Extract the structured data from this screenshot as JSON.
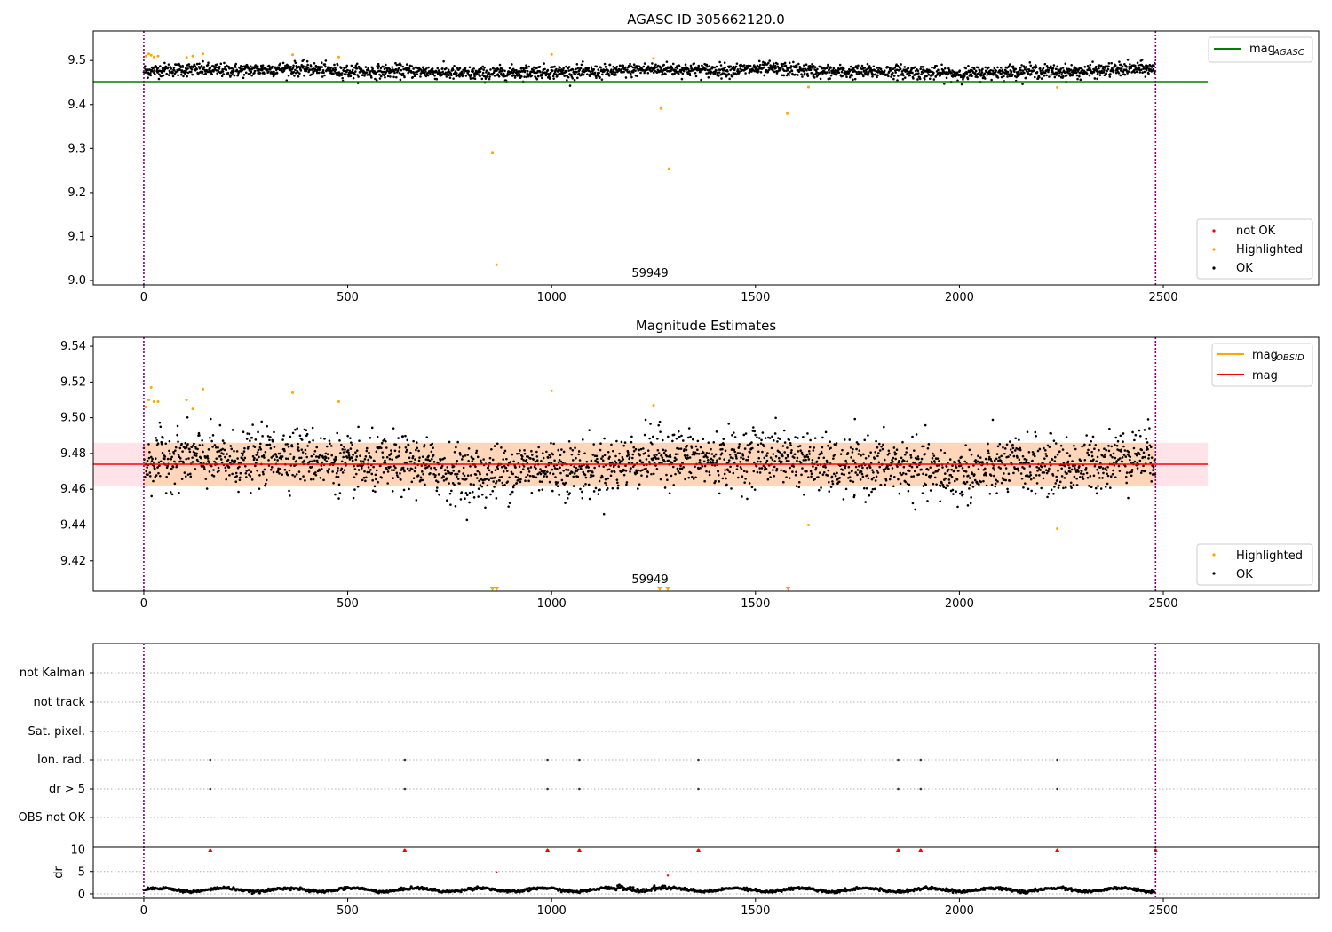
{
  "chart_data": [
    {
      "type": "scatter",
      "title": "AGASC ID 305662120.0",
      "xlim": [
        -124,
        2881
      ],
      "ylim": [
        8.99,
        9.567
      ],
      "xticks": [
        0,
        500,
        1000,
        1500,
        2000,
        2500
      ],
      "yticks": [
        9.0,
        9.1,
        9.2,
        9.3,
        9.4,
        9.5
      ],
      "annotation": "59949",
      "annotation_x": 1240,
      "annotation_y": 9.005,
      "vlines": [
        0,
        2481
      ],
      "hline": {
        "name": "mag_AGASC",
        "label": "mag",
        "sub": "AGASC",
        "y": 9.452,
        "x_end": 2609,
        "color": "#008000"
      },
      "ok": {
        "n": 2480,
        "x_range": [
          0,
          2481
        ],
        "mean": 9.476,
        "scatter": 0.011
      },
      "highlighted": [
        [
          5,
          9.51
        ],
        [
          12,
          9.515
        ],
        [
          18,
          9.512
        ],
        [
          25,
          9.508
        ],
        [
          35,
          9.51
        ],
        [
          105,
          9.507
        ],
        [
          120,
          9.51
        ],
        [
          145,
          9.515
        ],
        [
          365,
          9.513
        ],
        [
          478,
          9.508
        ],
        [
          1000,
          9.514
        ],
        [
          1250,
          9.505
        ],
        [
          855,
          9.291
        ],
        [
          865,
          9.036
        ],
        [
          1268,
          9.391
        ],
        [
          1288,
          9.254
        ],
        [
          1578,
          9.381
        ],
        [
          1630,
          9.44
        ],
        [
          2240,
          9.439
        ]
      ],
      "legend_top": [
        "mag_AGASC"
      ],
      "legend": [
        "not OK",
        "Highlighted",
        "OK"
      ],
      "colors": {
        "ok": "#000000",
        "highlighted": "#ffa500",
        "not_ok": "#ff0000"
      }
    },
    {
      "type": "scatter",
      "title": "Magnitude Estimates",
      "xlim": [
        -124,
        2881
      ],
      "ylim": [
        9.403,
        9.545
      ],
      "xticks": [
        0,
        500,
        1000,
        1500,
        2000,
        2500
      ],
      "yticks": [
        9.42,
        9.44,
        9.46,
        9.48,
        9.5,
        9.52,
        9.54
      ],
      "annotation": "59949",
      "annotation_x": 1240,
      "annotation_y": 9.406,
      "vlines": [
        0,
        2481
      ],
      "mag_line": {
        "label": "mag",
        "y": 9.474,
        "band": [
          9.462,
          9.486
        ],
        "x_end": 2609,
        "color": "#ff0000"
      },
      "mag_obsid": {
        "label": "mag",
        "sub": "OBSID",
        "color": "#ffa500"
      },
      "ok": {
        "n": 2480,
        "x_range": [
          0,
          2481
        ],
        "mean": 9.474,
        "scatter": 0.011
      },
      "highlighted": [
        [
          5,
          9.506
        ],
        [
          12,
          9.51
        ],
        [
          18,
          9.517
        ],
        [
          25,
          9.509
        ],
        [
          35,
          9.509
        ],
        [
          105,
          9.51
        ],
        [
          120,
          9.505
        ],
        [
          145,
          9.516
        ],
        [
          365,
          9.514
        ],
        [
          478,
          9.509
        ],
        [
          1000,
          9.515
        ],
        [
          1250,
          9.507
        ],
        [
          1630,
          9.44
        ],
        [
          2240,
          9.438
        ]
      ],
      "highlighted_offscale_x": [
        855,
        865,
        1265,
        1285,
        1580
      ],
      "legend": [
        "mag_OBSID",
        "mag",
        "Highlighted",
        "OK"
      ]
    },
    {
      "type": "scatter",
      "title": "",
      "xlim": [
        -124,
        2881
      ],
      "flag_labels": [
        "not Kalman",
        "not track",
        "Sat. pixel.",
        "Ion. rad.",
        "dr > 5",
        "OBS not OK"
      ],
      "flag_points": {
        "Ion. rad.": [
          163,
          640,
          990,
          1068,
          1360,
          1850,
          1905,
          2240
        ],
        "dr > 5": [
          163,
          640,
          990,
          1068,
          1360,
          1850,
          1905,
          2240
        ]
      },
      "dr": {
        "ylabel": "dr",
        "yticks": [
          0,
          5,
          10
        ],
        "ylim": [
          -1,
          10.5
        ],
        "clipped_x": [
          163,
          640,
          990,
          1068,
          1360,
          1850,
          1905,
          2240,
          2481
        ],
        "red_points": [
          [
            865,
            4.8
          ],
          [
            1285,
            4.1
          ]
        ],
        "baseline_mean": 0.9,
        "baseline_scatter": 0.4
      },
      "xticks": [
        0,
        500,
        1000,
        1500,
        2000,
        2500
      ]
    }
  ]
}
